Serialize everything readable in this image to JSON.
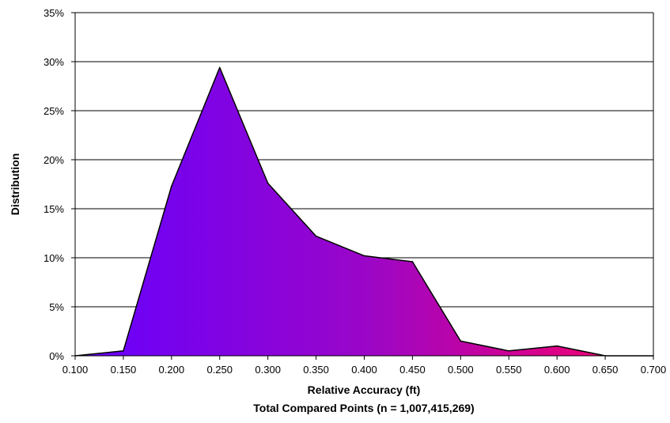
{
  "chart_data": {
    "type": "area",
    "title": "",
    "xlabel": "Relative Accuracy (ft)",
    "xlabel_line2": "Total Compared Points (n = 1,007,415,269)",
    "ylabel": "Distribution",
    "x": [
      0.1,
      0.15,
      0.2,
      0.25,
      0.3,
      0.35,
      0.4,
      0.45,
      0.5,
      0.55,
      0.6,
      0.65,
      0.7
    ],
    "x_tick_labels": [
      "0.100",
      "0.150",
      "0.200",
      "0.250",
      "0.300",
      "0.350",
      "0.400",
      "0.450",
      "0.500",
      "0.550",
      "0.600",
      "0.650",
      "0.700"
    ],
    "series": [
      {
        "values": [
          0.0,
          0.5,
          17.3,
          29.4,
          17.6,
          12.2,
          10.2,
          9.6,
          1.5,
          0.5,
          1.0,
          0.0,
          0.0
        ]
      }
    ],
    "xlim": [
      0.1,
      0.7
    ],
    "ylim": [
      0,
      35
    ],
    "y_ticks": [
      0,
      5,
      10,
      15,
      20,
      25,
      30,
      35
    ],
    "y_tick_labels": [
      "0%",
      "5%",
      "10%",
      "15%",
      "20%",
      "25%",
      "30%",
      "35%"
    ],
    "grid": "horizontal",
    "legend": "none",
    "colors": {
      "fill_gradient_start": "#6600ff",
      "fill_gradient_mid": "#9a06c8",
      "fill_gradient_end": "#ff0066",
      "outline": "#000000",
      "gridline": "#000000",
      "plot_background": "#ffffff"
    }
  }
}
